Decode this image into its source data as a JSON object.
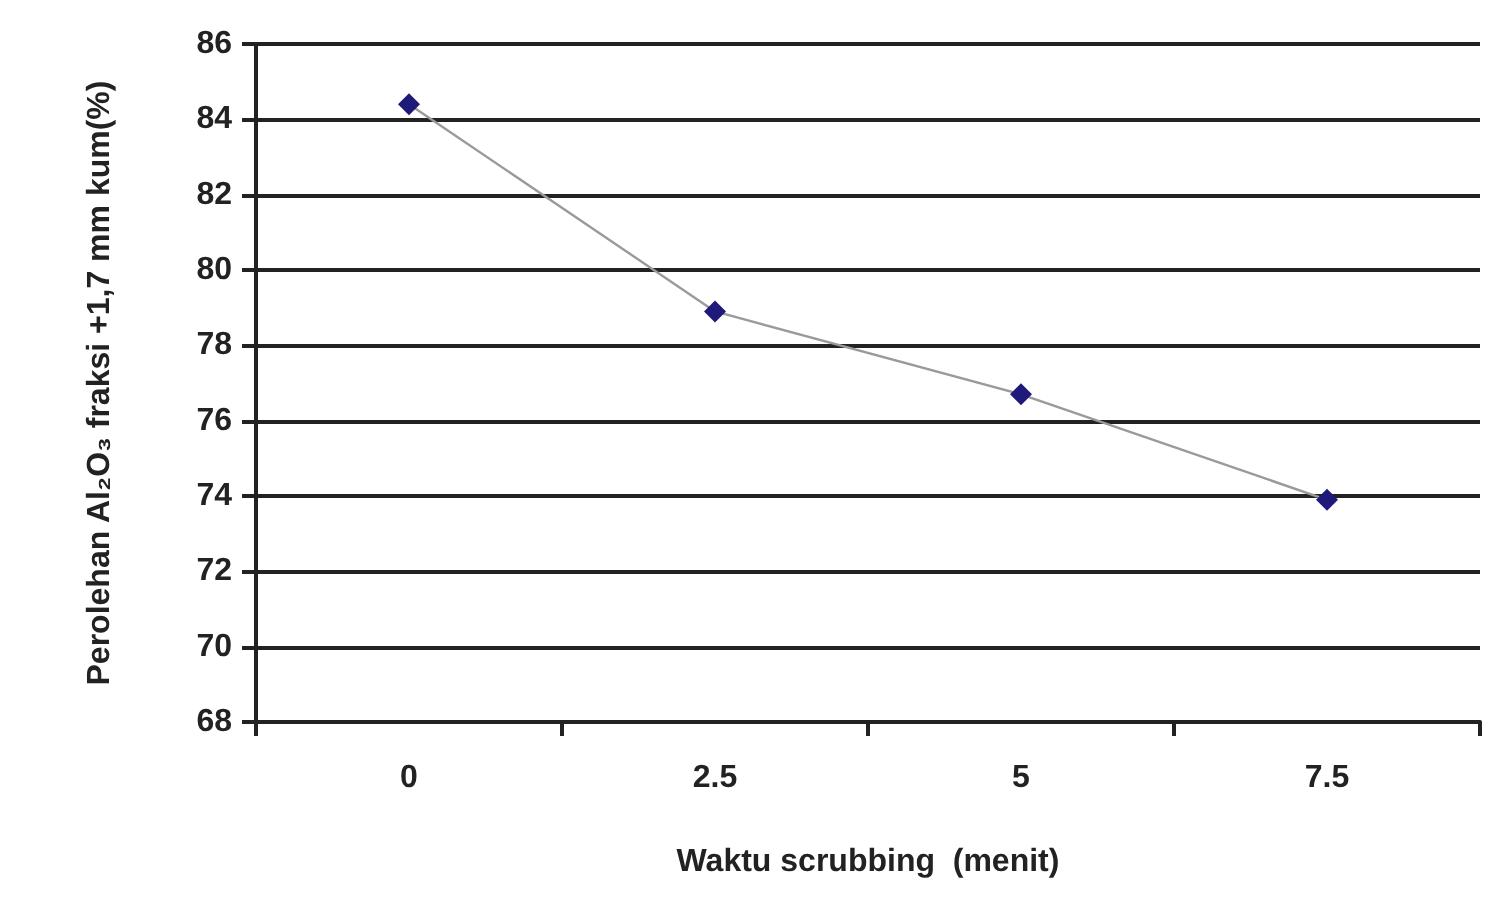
{
  "chart_data": {
    "type": "line",
    "xlabel": "Waktu scrubbing  (menit)",
    "ylabel": "Perolehan Al₂O₃ fraksi +1,7 mm kum(%)",
    "categories": [
      "0",
      "2.5",
      "5",
      "7.5"
    ],
    "series": [
      {
        "color": "#1f1a7a",
        "values": [
          84.4,
          78.9,
          76.7,
          73.9
        ]
      }
    ],
    "ylim": [
      68,
      86
    ],
    "yticks": [
      68,
      70,
      72,
      74,
      76,
      78,
      80,
      82,
      84,
      86
    ],
    "grid": "y",
    "marker": "diamond",
    "line_style": "solid"
  }
}
